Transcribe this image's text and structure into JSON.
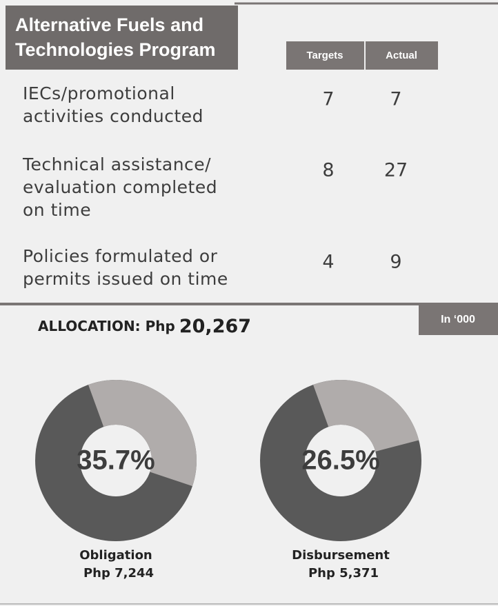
{
  "header": {
    "title_lines": [
      "Alternative Fuels and",
      "Technologies Program"
    ]
  },
  "table": {
    "columns": [
      "Targets",
      "Actual"
    ],
    "rows": [
      {
        "label_lines": [
          "IECs/promotional",
          "activities conducted"
        ],
        "values": [
          7,
          7
        ]
      },
      {
        "label_lines": [
          "Technical assistance/",
          "evaluation completed",
          "on time"
        ],
        "values": [
          8,
          27
        ]
      },
      {
        "label_lines": [
          "Policies formulated or",
          "permits issued on time"
        ],
        "values": [
          4,
          9
        ]
      }
    ]
  },
  "allocation": {
    "label": "ALLOCATION: Php",
    "amount": "20,267",
    "unit_note": "In ‘000"
  },
  "chart_data": [
    {
      "type": "pie",
      "values": [
        35.7
      ],
      "value_labels": [
        "35.7%"
      ],
      "color": "#b0acab",
      "track_color": "#595959",
      "caption_lines": [
        "Obligation",
        "Php 7,244"
      ]
    },
    {
      "type": "pie",
      "values": [
        26.5
      ],
      "value_labels": [
        "26.5%"
      ],
      "color": "#b0acab",
      "track_color": "#595959",
      "caption_lines": [
        "Disbursement",
        "Php 5,371"
      ]
    }
  ]
}
